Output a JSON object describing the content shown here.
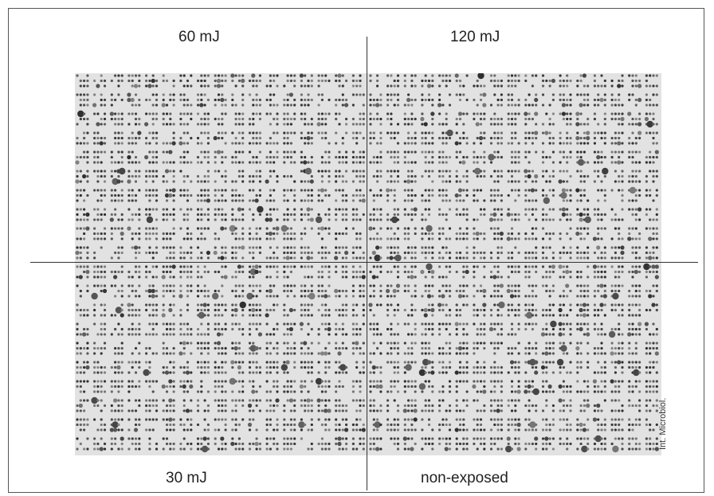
{
  "figure": {
    "quadrant_labels": {
      "top_left": "60 mJ",
      "top_right": "120 mJ",
      "bottom_left": "30 mJ",
      "bottom_right": "non-exposed"
    },
    "credit": "Int. Microbiol.",
    "colors": {
      "membrane_background": "#e2e2e2",
      "dot": "#333333",
      "divider_line": "#333333"
    }
  }
}
